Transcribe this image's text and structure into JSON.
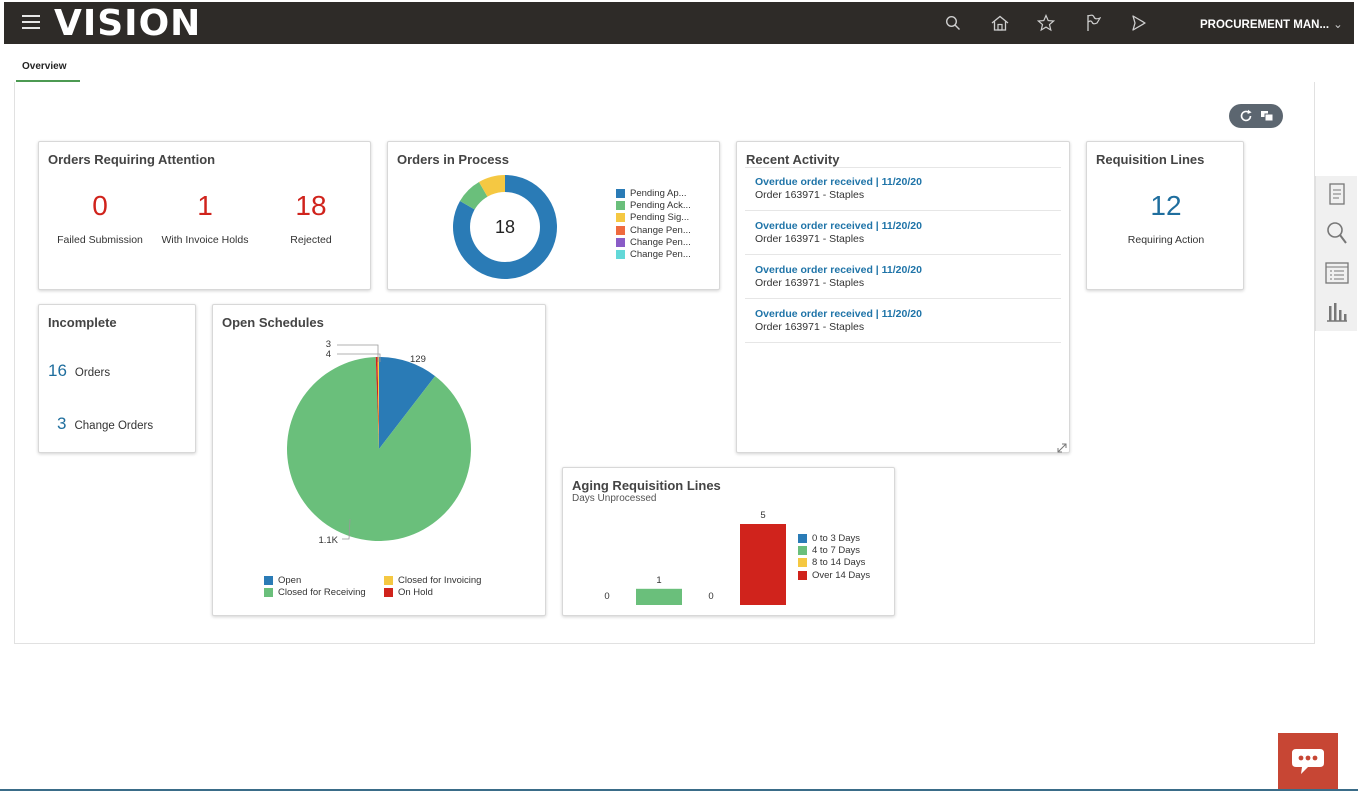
{
  "app": {
    "brand": "VISION",
    "user_menu": "PROCUREMENT MAN..."
  },
  "tabs": [
    {
      "label": "Overview"
    }
  ],
  "orders_attention": {
    "title": "Orders Requiring Attention",
    "metrics": [
      {
        "value": "0",
        "label": "Failed Submission"
      },
      {
        "value": "1",
        "label": "With Invoice Holds"
      },
      {
        "value": "18",
        "label": "Rejected"
      }
    ],
    "color": "#d0231c"
  },
  "orders_in_process": {
    "title": "Orders in Process",
    "center_value": "18",
    "legend": [
      {
        "label": "Pending Ap...",
        "color": "#2a7bb6"
      },
      {
        "label": "Pending Ack...",
        "color": "#6abf7b"
      },
      {
        "label": "Pending Sig...",
        "color": "#f5c842"
      },
      {
        "label": "Change Pen...",
        "color": "#ef6a3f"
      },
      {
        "label": "Change Pen...",
        "color": "#8a5cc7"
      },
      {
        "label": "Change Pen...",
        "color": "#62d8d8"
      }
    ]
  },
  "recent_activity": {
    "title": "Recent Activity",
    "items": [
      {
        "link": "Overdue order received | 11/20/20",
        "sub": "Order 163971 - Staples"
      },
      {
        "link": "Overdue order received | 11/20/20",
        "sub": "Order 163971 - Staples"
      },
      {
        "link": "Overdue order received | 11/20/20",
        "sub": "Order 163971 - Staples"
      },
      {
        "link": "Overdue order received | 11/20/20",
        "sub": "Order 163971 - Staples"
      }
    ]
  },
  "requisition_lines": {
    "title": "Requisition Lines",
    "value": "12",
    "label": "Requiring Action",
    "color": "#1f6e9e"
  },
  "incomplete": {
    "title": "Incomplete",
    "items": [
      {
        "value": "16",
        "label": "Orders"
      },
      {
        "value": "3",
        "label": "Change Orders"
      }
    ]
  },
  "open_schedules": {
    "title": "Open Schedules",
    "labels": {
      "open": "129",
      "invoicing": "3",
      "hold": "4",
      "receiving": "1.1K"
    },
    "legend": [
      {
        "label": "Open",
        "color": "#2a7bb6"
      },
      {
        "label": "Closed for Invoicing",
        "color": "#f5c842"
      },
      {
        "label": "Closed for Receiving",
        "color": "#6abf7b"
      },
      {
        "label": "On Hold",
        "color": "#d0231c"
      }
    ]
  },
  "aging": {
    "title": "Aging Requisition Lines",
    "subtitle": "Days Unprocessed",
    "legend": [
      {
        "label": "0 to 3 Days",
        "color": "#2a7bb6"
      },
      {
        "label": "4 to 7 Days",
        "color": "#6abf7b"
      },
      {
        "label": "8 to 14 Days",
        "color": "#f5c842"
      },
      {
        "label": "Over 14 Days",
        "color": "#d0231c"
      }
    ]
  },
  "chart_data": [
    {
      "type": "pie",
      "title": "Orders in Process",
      "categories": [
        "Pending Ap...",
        "Pending Ack...",
        "Pending Sig...",
        "Change Pen...",
        "Change Pen...",
        "Change Pen..."
      ],
      "values": [
        15,
        1.5,
        1.5,
        0,
        0,
        0
      ],
      "total": 18
    },
    {
      "type": "pie",
      "title": "Open Schedules",
      "categories": [
        "Open",
        "Closed for Invoicing",
        "Closed for Receiving",
        "On Hold"
      ],
      "values": [
        129,
        3,
        1100,
        4
      ]
    },
    {
      "type": "bar",
      "title": "Aging Requisition Lines",
      "subtitle": "Days Unprocessed",
      "categories": [
        "0 to 3 Days",
        "4 to 7 Days",
        "8 to 14 Days",
        "Over 14 Days"
      ],
      "values": [
        0,
        1,
        0,
        5
      ],
      "ylim": [
        0,
        5
      ]
    }
  ]
}
